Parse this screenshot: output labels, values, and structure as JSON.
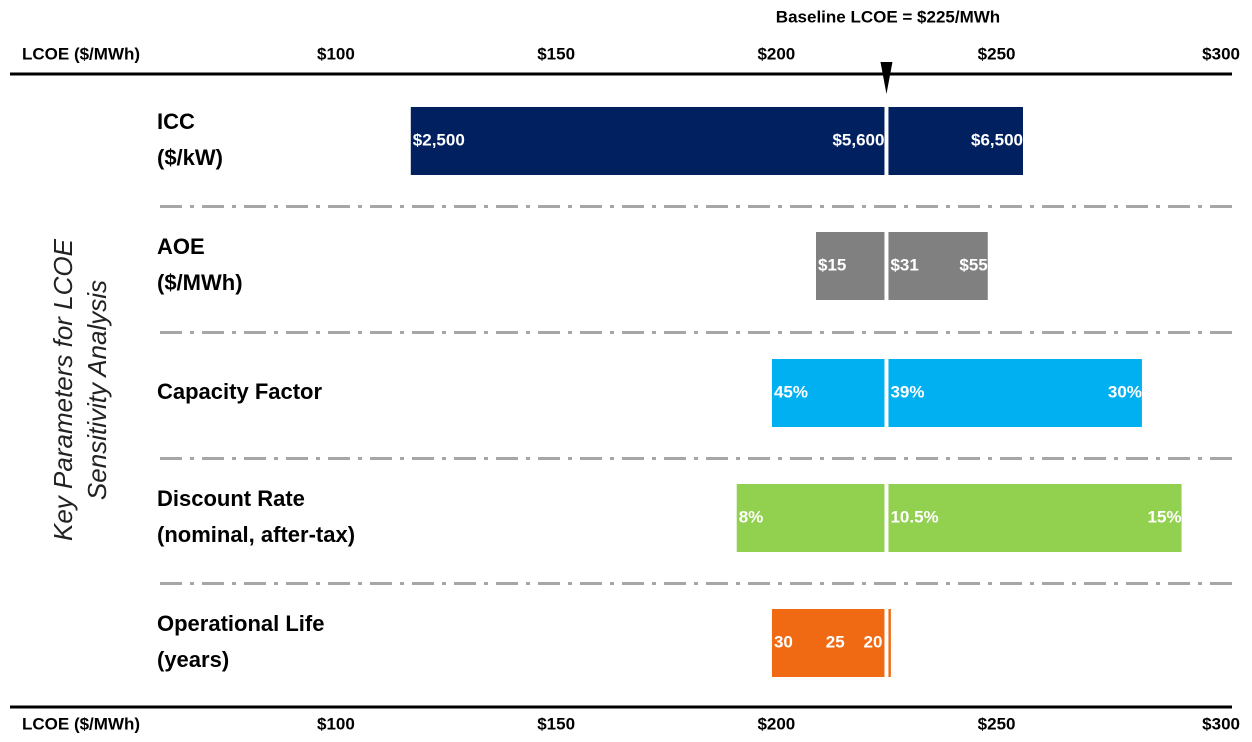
{
  "chart_data": {
    "type": "tornado",
    "title": "Baseline LCOE = $225/MWh",
    "baseline": 225,
    "axis_label": "LCOE ($/MWh)",
    "y_axis_label": [
      "Key Parameters for LCOE",
      "Sensitivity Analysis"
    ],
    "xlim": [
      26,
      303
    ],
    "xticks": [
      {
        "value": 100,
        "label": "$100"
      },
      {
        "value": 150,
        "label": "$150"
      },
      {
        "value": 200,
        "label": "$200"
      },
      {
        "value": 250,
        "label": "$250"
      },
      {
        "value": 300,
        "label": "$300"
      }
    ],
    "series": [
      {
        "name": [
          "ICC",
          "($/kW)"
        ],
        "color": "#002060",
        "values": [
          117,
          256
        ],
        "parameter_labels": [
          "$2,500",
          "$5,600",
          "$6,500"
        ]
      },
      {
        "name": [
          "AOE",
          "($/MWh)"
        ],
        "color": "#808080",
        "values": [
          209,
          248
        ],
        "parameter_labels": [
          "$15",
          "$31",
          "$55"
        ]
      },
      {
        "name": [
          "Capacity Factor"
        ],
        "color": "#00b0f0",
        "values": [
          199,
          283
        ],
        "parameter_labels": [
          "45%",
          "39%",
          "30%"
        ]
      },
      {
        "name": [
          "Discount Rate",
          "(nominal, after-tax)"
        ],
        "color": "#92d050",
        "values": [
          191,
          292
        ],
        "parameter_labels": [
          "8%",
          "10.5%",
          "15%"
        ]
      },
      {
        "name": [
          "Operational Life",
          "(years)"
        ],
        "color": "#f06a14",
        "values": [
          199,
          226
        ],
        "parameter_labels": [
          "30",
          "25",
          "20"
        ]
      }
    ]
  }
}
